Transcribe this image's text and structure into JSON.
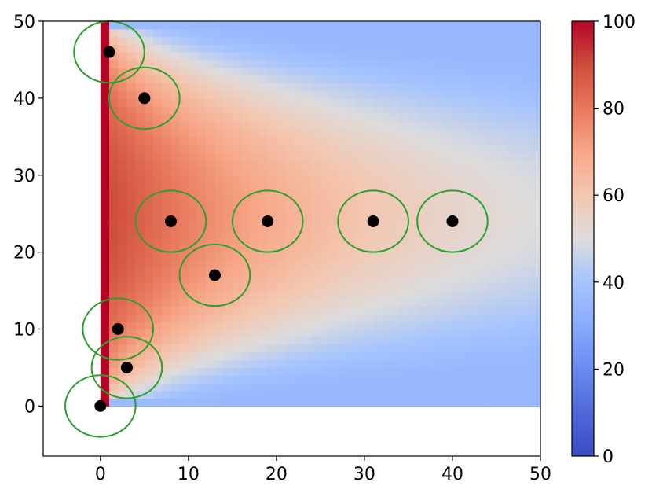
{
  "chart_data": {
    "type": "heatmap",
    "title": "",
    "xlabel": "",
    "ylabel": "",
    "xlim": [
      -6.5,
      50
    ],
    "ylim": [
      -6.5,
      50
    ],
    "grid": false,
    "x_ticks": [
      0,
      10,
      20,
      30,
      40,
      50
    ],
    "y_ticks": [
      0,
      10,
      20,
      30,
      40,
      50
    ],
    "x_tick_labels": [
      "0",
      "10",
      "20",
      "30",
      "40",
      "50"
    ],
    "y_tick_labels": [
      "0",
      "10",
      "20",
      "30",
      "40",
      "50"
    ],
    "heatmap": {
      "colormap": "coolwarm",
      "x_range": [
        0,
        50
      ],
      "y_range": [
        0,
        50
      ],
      "hot_edge_value": 100,
      "far_field_value": 35,
      "hot_edge_x": 0
    },
    "colorbar": {
      "min": 0,
      "max": 100,
      "ticks": [
        0,
        20,
        40,
        60,
        80,
        100
      ],
      "tick_labels": [
        "0",
        "20",
        "40",
        "60",
        "80",
        "100"
      ]
    },
    "points": [
      {
        "x": 0,
        "y": 0
      },
      {
        "x": 3,
        "y": 5
      },
      {
        "x": 2,
        "y": 10
      },
      {
        "x": 13,
        "y": 17
      },
      {
        "x": 8,
        "y": 24
      },
      {
        "x": 19,
        "y": 24
      },
      {
        "x": 31,
        "y": 24
      },
      {
        "x": 40,
        "y": 24
      },
      {
        "x": 5,
        "y": 40
      },
      {
        "x": 1,
        "y": 46
      }
    ],
    "point_color": "#000000",
    "circle_color": "#2ca02c",
    "circle_radius": 4
  }
}
